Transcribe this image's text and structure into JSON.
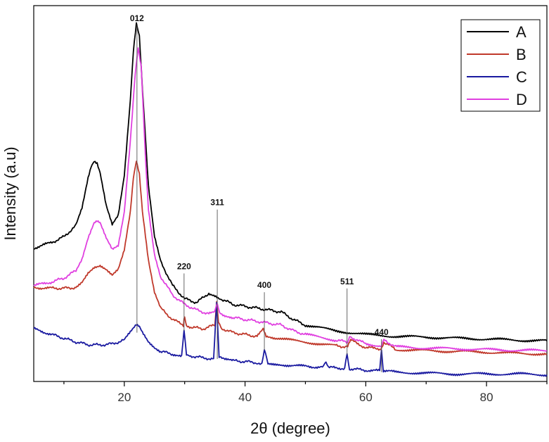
{
  "chart_data": {
    "type": "line",
    "title": "",
    "xlabel": "2θ (degree)",
    "ylabel": "Intensity (a.u)",
    "xlim": [
      5,
      90
    ],
    "ylim": [
      0,
      100
    ],
    "xticks": [
      20,
      40,
      60,
      80
    ],
    "xtick_labels": [
      "20",
      "40",
      "60",
      "80"
    ],
    "yticks_shown": false,
    "grid": false,
    "legend_position": "top-right",
    "series": [
      {
        "name": "A",
        "color": "#000000",
        "x": [
          5,
          8,
          10,
          12,
          13,
          14,
          14.5,
          15,
          15.5,
          16,
          17,
          18,
          19,
          20,
          21,
          21.5,
          22,
          22.5,
          23,
          24,
          25,
          26,
          28,
          30,
          32,
          34,
          35,
          36,
          38,
          40,
          42,
          44,
          46,
          48,
          50,
          55,
          60,
          65,
          70,
          75,
          80,
          85,
          90
        ],
        "y": [
          35.5,
          37.0,
          38.5,
          41.5,
          46.0,
          54.0,
          57.0,
          58.5,
          58.0,
          55.5,
          47.0,
          42.0,
          44.5,
          55.0,
          75.0,
          88.0,
          95.5,
          92.0,
          78.0,
          52.0,
          38.5,
          32.0,
          25.5,
          22.0,
          21.0,
          23.5,
          23.0,
          22.0,
          20.5,
          20.0,
          19.5,
          19.0,
          18.5,
          16.5,
          15.0,
          13.5,
          12.5,
          12.0,
          11.8,
          11.5,
          11.3,
          11.0,
          10.8
        ]
      },
      {
        "name": "B",
        "color": "#c0392b",
        "x": [
          5,
          8,
          10,
          12,
          13,
          14,
          15,
          16,
          17,
          18,
          19,
          20,
          21,
          21.5,
          22,
          22.5,
          23,
          24,
          25,
          26,
          28,
          29.8,
          30,
          30.3,
          31,
          33,
          35,
          35.3,
          35.6,
          36,
          38,
          40,
          42,
          43,
          43.5,
          45,
          50,
          55,
          57,
          57.5,
          60,
          62.5,
          63,
          65,
          70,
          75,
          80,
          85,
          90
        ],
        "y": [
          25.0,
          24.8,
          24.8,
          25.0,
          26.5,
          29.0,
          30.5,
          31.0,
          30.0,
          28.5,
          30.0,
          35.0,
          45.0,
          54.0,
          58.5,
          55.0,
          45.0,
          32.0,
          23.5,
          19.5,
          16.5,
          15.0,
          17.5,
          15.0,
          14.5,
          14.0,
          15.0,
          21.0,
          15.5,
          14.2,
          13.0,
          12.5,
          12.0,
          14.0,
          12.0,
          11.5,
          10.5,
          9.5,
          9.2,
          11.0,
          9.0,
          8.7,
          10.5,
          8.5,
          8.2,
          8.0,
          7.8,
          7.5,
          7.3
        ]
      },
      {
        "name": "C",
        "color": "#1a1aa0",
        "x": [
          5,
          8,
          10,
          12,
          14,
          16,
          18,
          20,
          21,
          22,
          22.5,
          23,
          24,
          25,
          26,
          28,
          29.5,
          29.9,
          30.3,
          31,
          33,
          34.8,
          35.3,
          35.7,
          36.5,
          38,
          40,
          42,
          42.8,
          43.2,
          43.8,
          46,
          50,
          53,
          53.4,
          54,
          56.5,
          56.9,
          57.3,
          60,
          62.3,
          62.6,
          62.9,
          65,
          70,
          75,
          80,
          85,
          90
        ],
        "y": [
          14.0,
          12.5,
          11.5,
          10.5,
          9.8,
          9.7,
          10.0,
          11.0,
          13.0,
          15.0,
          14.5,
          13.0,
          10.5,
          9.0,
          8.0,
          7.3,
          7.0,
          13.5,
          7.0,
          6.8,
          6.3,
          6.0,
          21.0,
          6.5,
          5.8,
          5.5,
          5.3,
          5.0,
          4.9,
          8.3,
          4.8,
          4.5,
          4.0,
          3.8,
          5.2,
          3.7,
          3.5,
          7.0,
          3.4,
          3.0,
          2.8,
          8.0,
          2.8,
          2.5,
          2.2,
          2.0,
          2.0,
          2.0,
          1.8
        ]
      },
      {
        "name": "D",
        "color": "#e040e0",
        "x": [
          5,
          8,
          10,
          12,
          13,
          14,
          15,
          15.5,
          16,
          17,
          18,
          19,
          20,
          21,
          21.8,
          22.3,
          22.8,
          23.5,
          24,
          25,
          26,
          28,
          30,
          32,
          34,
          35,
          35.4,
          35.8,
          36.5,
          38,
          40,
          42,
          44,
          46,
          48,
          50,
          55,
          57,
          57.3,
          60,
          62.6,
          63,
          65,
          70,
          75,
          80,
          85,
          90
        ],
        "y": [
          25.5,
          26.5,
          27.5,
          29.5,
          32.5,
          38.0,
          42.0,
          42.5,
          42.0,
          38.0,
          35.0,
          36.0,
          45.0,
          64.0,
          82.0,
          89.0,
          84.0,
          60.0,
          46.0,
          34.0,
          28.0,
          23.0,
          20.5,
          19.0,
          18.0,
          18.5,
          20.5,
          18.5,
          17.5,
          17.0,
          16.5,
          16.0,
          15.5,
          15.0,
          13.5,
          12.5,
          11.0,
          10.5,
          12.0,
          10.0,
          9.5,
          11.0,
          9.2,
          8.9,
          8.7,
          8.5,
          8.3,
          8.2
        ]
      }
    ],
    "annotations": [
      {
        "label": "012",
        "x": 22.1,
        "y_top": 95.5,
        "y_bottom": 13.0
      },
      {
        "label": "220",
        "x": 29.9,
        "y_top": 29.5,
        "y_bottom": 13.5
      },
      {
        "label": "311",
        "x": 35.4,
        "y_top": 46.5,
        "y_bottom": 6.0
      },
      {
        "label": "400",
        "x": 43.2,
        "y_top": 24.5,
        "y_bottom": 8.3
      },
      {
        "label": "511",
        "x": 56.9,
        "y_top": 25.5,
        "y_bottom": 7.0
      },
      {
        "label": "440",
        "x": 62.6,
        "y_top": 12.0,
        "y_bottom": 2.5
      }
    ]
  }
}
